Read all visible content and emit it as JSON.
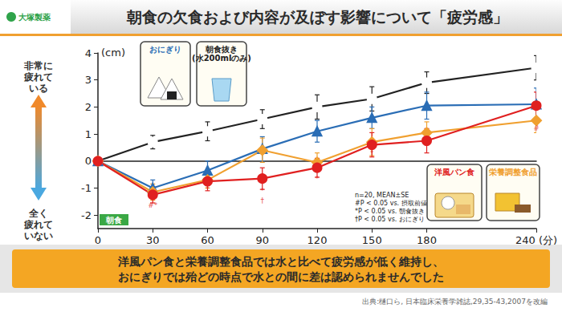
{
  "chart_data": {
    "type": "line",
    "title": "朝食の欠食および内容が及ぼす影響について「疲労感」",
    "logo": "大塚製薬",
    "ylabel": "(cm)",
    "y_high_label": "非常に\n疲れて\nいる",
    "y_low_label": "全く\n疲れて\nいない",
    "meal_label": "朝食",
    "x": [
      0,
      30,
      60,
      90,
      120,
      150,
      180,
      240
    ],
    "xlim": [
      0,
      240
    ],
    "xticks": [
      0,
      30,
      60,
      90,
      120,
      150,
      180,
      {
        "value": 240,
        "label": "240 (分)"
      }
    ],
    "ylim": [
      -2.5,
      4
    ],
    "yticks": [
      -2,
      -1,
      0,
      1,
      2,
      3,
      4
    ],
    "grid": false,
    "series": [
      {
        "name": "朝食抜き\n(水200mlのみ)",
        "color": "#222222",
        "marker": "circle-open",
        "values": [
          0,
          0.7,
          1.1,
          1.55,
          2.0,
          2.3,
          2.9,
          3.45
        ],
        "errors": [
          0,
          0.25,
          0.35,
          0.35,
          0.45,
          0.45,
          0.4,
          0.45
        ]
      },
      {
        "name": "おにぎり",
        "color": "#2a6db5",
        "marker": "triangle",
        "values": [
          0,
          -1.0,
          -0.35,
          0.45,
          1.1,
          1.6,
          2.05,
          2.1
        ],
        "errors": [
          0,
          0.3,
          0.35,
          0.45,
          0.4,
          0.4,
          0.5,
          0.6
        ]
      },
      {
        "name": "栄養調整食品",
        "color": "#f0a030",
        "marker": "diamond",
        "values": [
          0,
          -1.15,
          -0.7,
          0.4,
          -0.05,
          0.7,
          1.05,
          1.5
        ],
        "errors": [
          0,
          0.3,
          0.3,
          0.45,
          0.35,
          0.5,
          0.4,
          0.45
        ]
      },
      {
        "name": "洋風パン食",
        "color": "#e02020",
        "marker": "circle",
        "values": [
          0,
          -1.25,
          -0.75,
          -0.65,
          -0.25,
          0.6,
          0.75,
          2.05
        ],
        "errors": [
          0,
          0.3,
          0.35,
          0.4,
          0.35,
          0.45,
          0.45,
          0.5
        ]
      }
    ],
    "annotations": [
      {
        "x": 30,
        "y": -1.65,
        "text": "#*"
      },
      {
        "x": 60,
        "y": -1.05,
        "text": "*"
      },
      {
        "x": 90,
        "y": -1.1,
        "text": "*"
      },
      {
        "x": 90,
        "y": -1.45,
        "text": "†"
      },
      {
        "x": 120,
        "y": -0.65,
        "text": "*"
      },
      {
        "x": 150,
        "y": 0.3,
        "text": "*"
      },
      {
        "x": 240,
        "y": 1.2,
        "text": "#"
      }
    ],
    "stats_note": [
      "n=20, MEAN±SE",
      "#P < 0.05 vs. 摂取前値",
      "*P < 0.05 vs. 朝食抜き",
      "†P < 0.05 vs. おにぎり"
    ],
    "conclusion": [
      "洋風パン食と栄養調整食品では水と比べて疲労感が低く維持し、",
      "おにぎりでは殆どの時点で水との間に差は認められませんでした"
    ],
    "source": "出典:樋口ら, 日本臨床栄養学雑誌,29,35-43,2007を改編"
  }
}
